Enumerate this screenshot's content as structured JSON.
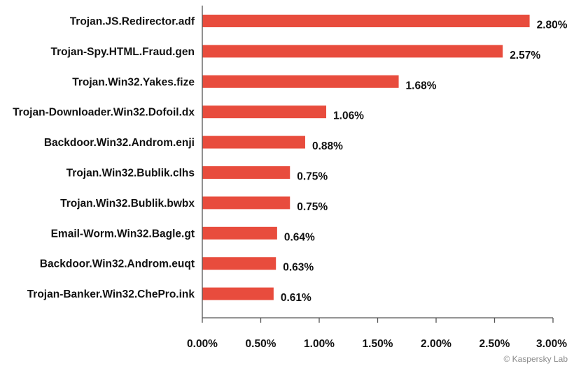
{
  "chart_data": {
    "type": "bar",
    "orientation": "horizontal",
    "categories": [
      "Trojan.JS.Redirector.adf",
      "Trojan-Spy.HTML.Fraud.gen",
      "Trojan.Win32.Yakes.fize",
      "Trojan-Downloader.Win32.Dofoil.dx",
      "Backdoor.Win32.Androm.enji",
      "Trojan.Win32.Bublik.clhs",
      "Trojan.Win32.Bublik.bwbx",
      "Email-Worm.Win32.Bagle.gt",
      "Backdoor.Win32.Androm.euqt",
      "Trojan-Banker.Win32.ChePro.ink"
    ],
    "values": [
      2.8,
      2.57,
      1.68,
      1.06,
      0.88,
      0.75,
      0.75,
      0.64,
      0.63,
      0.61
    ],
    "value_labels": [
      "2.80%",
      "2.57%",
      "1.68%",
      "1.06%",
      "0.88%",
      "0.75%",
      "0.75%",
      "0.64%",
      "0.63%",
      "0.61%"
    ],
    "xlim": [
      0,
      3.0
    ],
    "xticks": [
      0,
      0.5,
      1.0,
      1.5,
      2.0,
      2.5,
      3.0
    ],
    "xtick_labels": [
      "0.00%",
      "0.50%",
      "1.00%",
      "1.50%",
      "2.00%",
      "2.50%",
      "3.00%"
    ],
    "title": "",
    "xlabel": "",
    "ylabel": "",
    "grid": false,
    "bar_color": "#e84c3d"
  },
  "credit": "© Kaspersky Lab"
}
